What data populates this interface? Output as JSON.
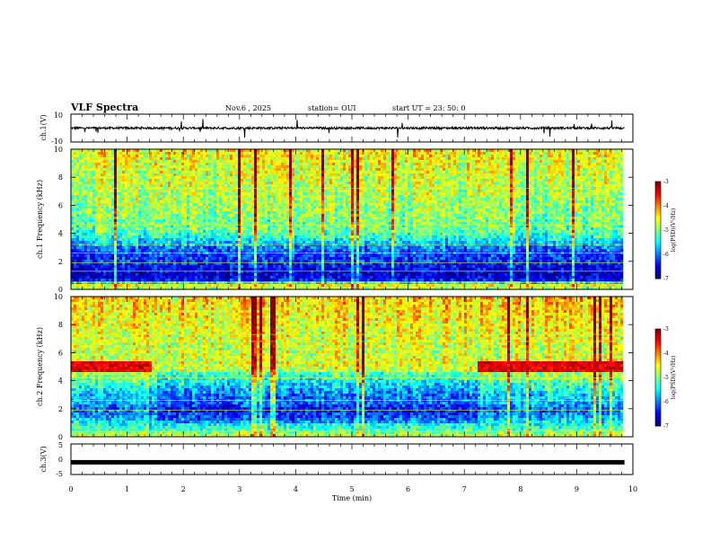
{
  "header": {
    "title": "VLF Spectra",
    "date": "Nov.6 , 2025",
    "station": "station= OUI",
    "start": "start UT = 23: 50: 0"
  },
  "chart_data": [
    {
      "type": "line",
      "panel": "ch1-waveform",
      "ylabel": "ch.1(V)",
      "ylim": [
        -10,
        10
      ],
      "yticks": [
        "10",
        "-10"
      ],
      "baseline": 0,
      "description": "noisy waveform around 0 V with sparse spikes"
    },
    {
      "type": "heatmap",
      "panel": "ch1-spectrogram",
      "ylabel": "ch.1 Frequency (kHz)",
      "ylim": [
        0,
        10
      ],
      "yticks": [
        0,
        2,
        4,
        6,
        8,
        10
      ],
      "colorbar": {
        "label": "log(PSD)(V²/Hz)",
        "range": [
          -7,
          -3
        ],
        "ticks": [
          "-3",
          "-4",
          "-5",
          "-6",
          "-7"
        ]
      },
      "profile_freq_kHz": [
        0,
        0.3,
        0.6,
        0.9,
        1.2,
        1.5,
        2.0,
        2.5,
        3.0,
        3.5,
        4.0,
        5.0,
        6.0,
        7.0,
        8.0,
        9.0,
        10.0
      ],
      "profile_log_psd": [
        -5.0,
        -4.6,
        -6.4,
        -6.7,
        -6.7,
        -6.6,
        -6.3,
        -6.3,
        -6.0,
        -5.6,
        -5.2,
        -5.0,
        -4.9,
        -4.8,
        -4.7,
        -4.6,
        -4.5
      ]
    },
    {
      "type": "heatmap",
      "panel": "ch2-spectrogram",
      "ylabel": "ch.2 Frequency (kHz)",
      "ylim": [
        0,
        10
      ],
      "yticks": [
        0,
        2,
        4,
        6,
        8,
        10
      ],
      "colorbar": {
        "label": "log(PSD)(V²/Hz)",
        "range": [
          -7,
          -3
        ],
        "ticks": [
          "-3",
          "-4",
          "-5",
          "-6",
          "-7"
        ]
      },
      "band_kHz": [
        4.7,
        5.3
      ],
      "band_time_min": [
        [
          0,
          1.4
        ],
        [
          7.2,
          9.8
        ]
      ],
      "profile_freq_kHz": [
        0,
        0.5,
        1.0,
        1.5,
        2.0,
        2.5,
        3.0,
        3.5,
        4.0,
        5.0,
        6.0,
        7.0,
        8.0,
        9.0,
        10.0
      ],
      "profile_log_psd": [
        -4.6,
        -5.2,
        -5.5,
        -5.9,
        -6.1,
        -5.7,
        -5.7,
        -5.4,
        -5.1,
        -4.6,
        -4.7,
        -4.6,
        -4.5,
        -4.4,
        -4.3
      ]
    },
    {
      "type": "line",
      "panel": "ch3-waveform",
      "ylabel": "ch.3(V)",
      "ylim": [
        -5,
        5
      ],
      "yticks": [
        "5",
        "0",
        "-5"
      ],
      "values_V": [
        -1,
        -1
      ],
      "description": "flat line at about -1 V"
    }
  ],
  "xaxis": {
    "xlabel": "Time (min)",
    "xlim": [
      0,
      10
    ],
    "xticks": [
      "0",
      "1",
      "2",
      "3",
      "4",
      "5",
      "6",
      "7",
      "8",
      "9",
      "10"
    ],
    "data_end_min": 9.85
  }
}
